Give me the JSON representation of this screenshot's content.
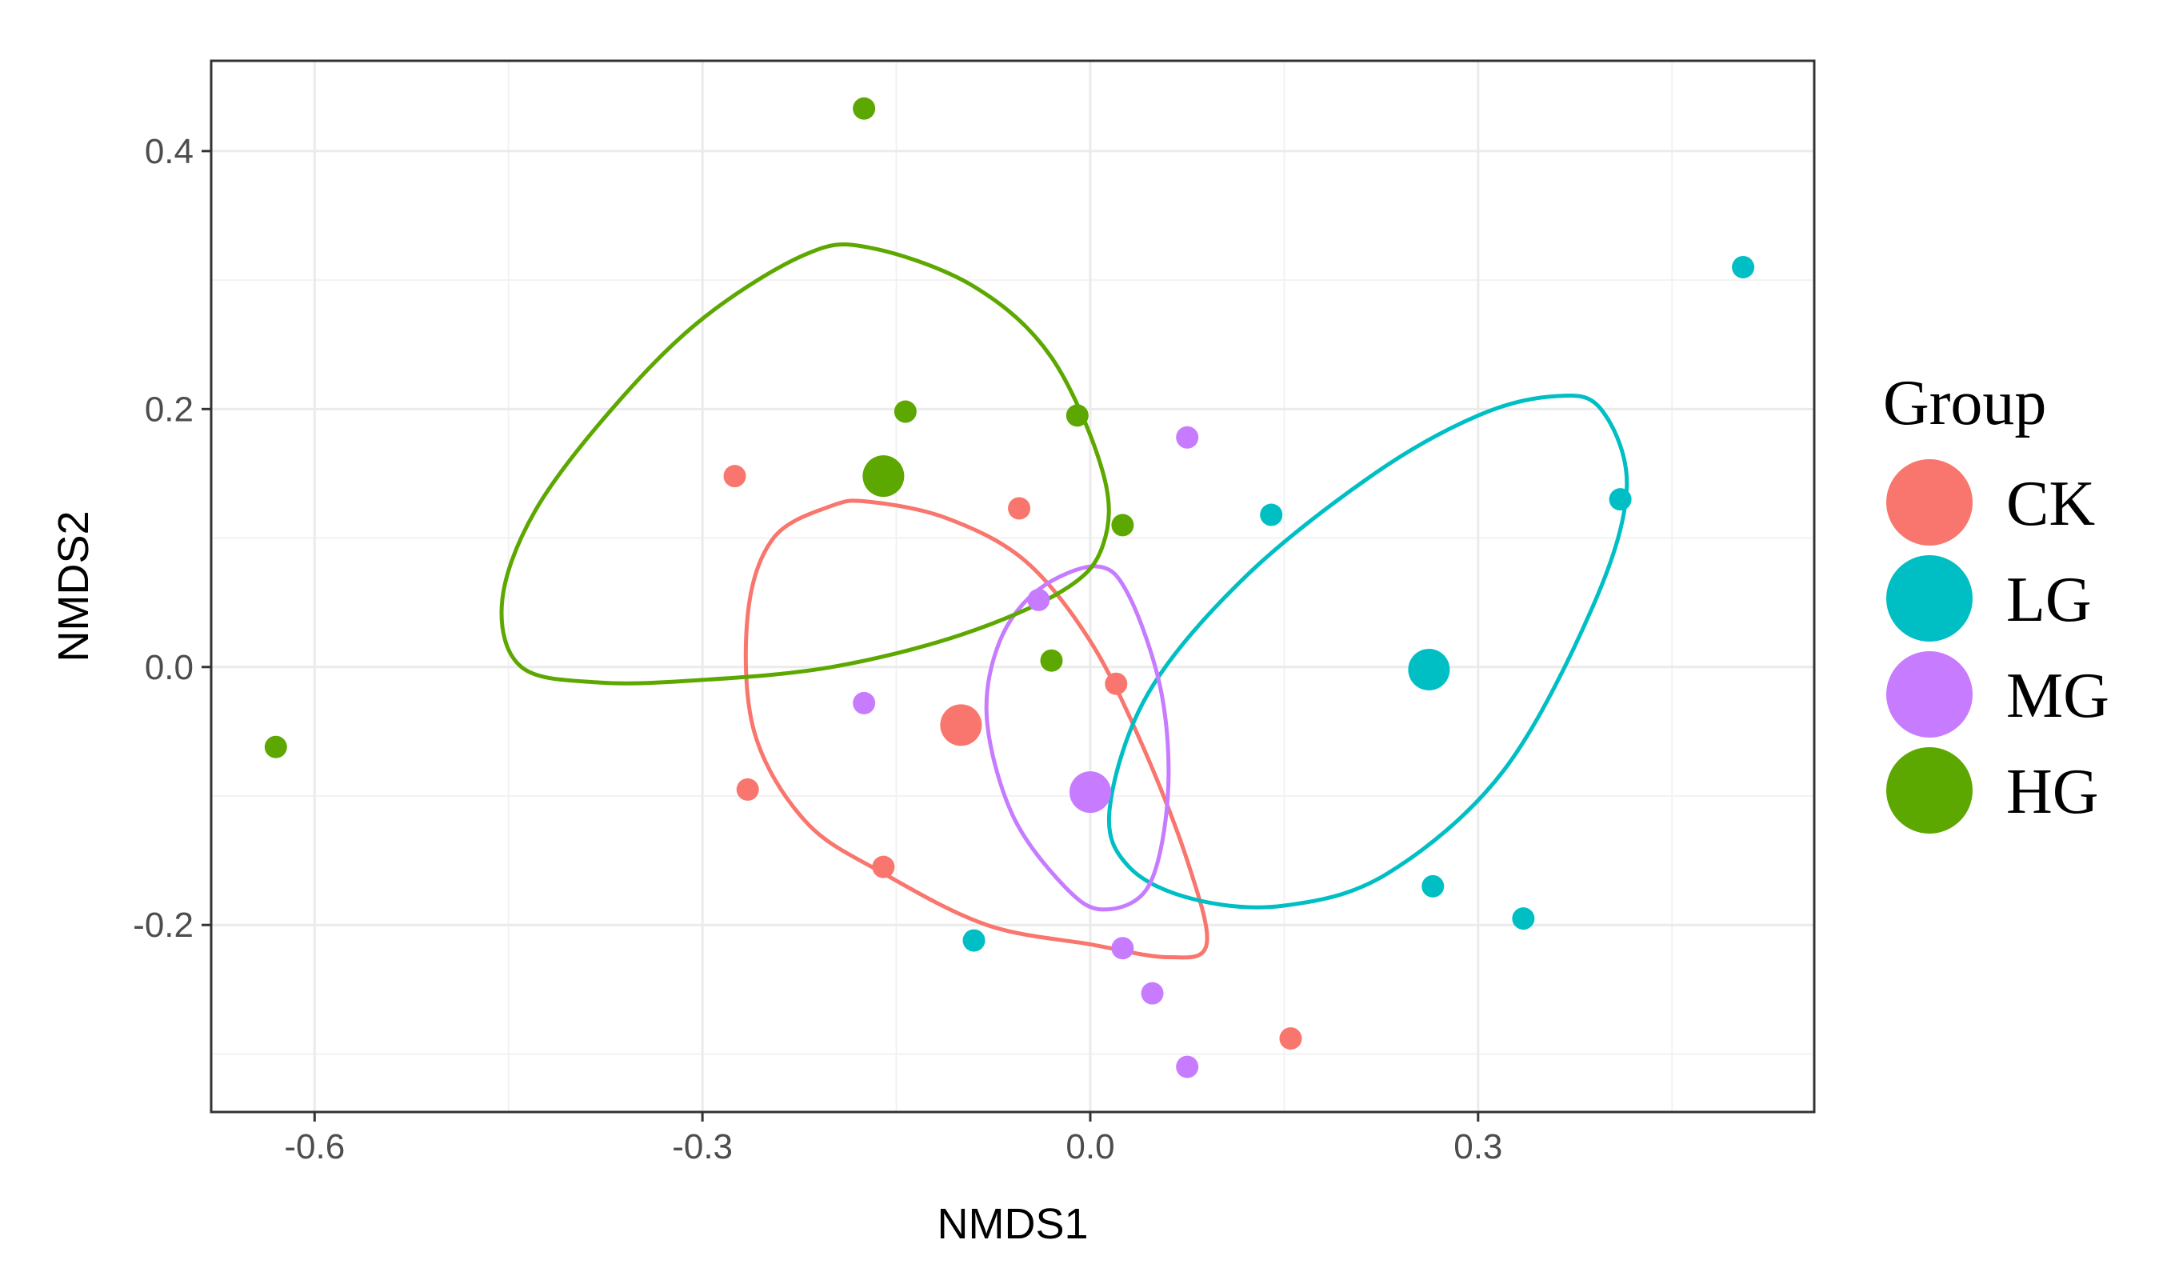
{
  "chart_data": {
    "type": "scatter",
    "title": "",
    "xlabel": "NMDS1",
    "ylabel": "NMDS2",
    "xlim": [
      -0.68,
      0.56
    ],
    "ylim": [
      -0.345,
      0.47
    ],
    "xticks": [
      -0.6,
      -0.3,
      0.0,
      0.3
    ],
    "xtick_labels": [
      "-0.6",
      "-0.3",
      "0.0",
      "0.3"
    ],
    "yticks": [
      -0.2,
      0.0,
      0.2,
      0.4
    ],
    "ytick_labels": [
      "-0.2",
      "0.0",
      "0.2",
      "0.4"
    ],
    "grid": true,
    "legend": {
      "title": "Group",
      "position": "right"
    },
    "series": [
      {
        "name": "CK",
        "color": "#F8766D",
        "points": [
          {
            "x": -0.275,
            "y": 0.148
          },
          {
            "x": -0.055,
            "y": 0.123
          },
          {
            "x": 0.02,
            "y": -0.013
          },
          {
            "x": -0.265,
            "y": -0.095
          },
          {
            "x": -0.16,
            "y": -0.155
          },
          {
            "x": 0.155,
            "y": -0.288
          }
        ],
        "centroid": {
          "x": -0.1,
          "y": -0.045
        },
        "ellipse": [
          {
            "x": -0.17,
            "y": 0.128
          },
          {
            "x": -0.11,
            "y": 0.115
          },
          {
            "x": -0.05,
            "y": 0.082
          },
          {
            "x": 0.0,
            "y": 0.02
          },
          {
            "x": 0.04,
            "y": -0.06
          },
          {
            "x": 0.075,
            "y": -0.15
          },
          {
            "x": 0.09,
            "y": -0.215
          },
          {
            "x": 0.06,
            "y": -0.225
          },
          {
            "x": 0.0,
            "y": -0.215
          },
          {
            "x": -0.08,
            "y": -0.2
          },
          {
            "x": -0.16,
            "y": -0.16
          },
          {
            "x": -0.22,
            "y": -0.12
          },
          {
            "x": -0.26,
            "y": -0.05
          },
          {
            "x": -0.265,
            "y": 0.04
          },
          {
            "x": -0.245,
            "y": 0.1
          },
          {
            "x": -0.2,
            "y": 0.125
          }
        ]
      },
      {
        "name": "LG",
        "color": "#00BFC4",
        "points": [
          {
            "x": 0.505,
            "y": 0.31
          },
          {
            "x": 0.41,
            "y": 0.13
          },
          {
            "x": 0.14,
            "y": 0.118
          },
          {
            "x": 0.265,
            "y": -0.17
          },
          {
            "x": 0.335,
            "y": -0.195
          },
          {
            "x": -0.09,
            "y": -0.212
          }
        ],
        "centroid": {
          "x": 0.262,
          "y": -0.002
        },
        "ellipse": [
          {
            "x": 0.36,
            "y": 0.21
          },
          {
            "x": 0.395,
            "y": 0.2
          },
          {
            "x": 0.415,
            "y": 0.14
          },
          {
            "x": 0.39,
            "y": 0.05
          },
          {
            "x": 0.32,
            "y": -0.08
          },
          {
            "x": 0.23,
            "y": -0.16
          },
          {
            "x": 0.15,
            "y": -0.185
          },
          {
            "x": 0.08,
            "y": -0.18
          },
          {
            "x": 0.03,
            "y": -0.155
          },
          {
            "x": 0.015,
            "y": -0.11
          },
          {
            "x": 0.045,
            "y": -0.02
          },
          {
            "x": 0.12,
            "y": 0.07
          },
          {
            "x": 0.22,
            "y": 0.15
          },
          {
            "x": 0.3,
            "y": 0.195
          }
        ]
      },
      {
        "name": "MG",
        "color": "#C77CFF",
        "points": [
          {
            "x": 0.075,
            "y": 0.178
          },
          {
            "x": -0.04,
            "y": 0.052
          },
          {
            "x": -0.175,
            "y": -0.028
          },
          {
            "x": 0.025,
            "y": -0.218
          },
          {
            "x": 0.048,
            "y": -0.253
          },
          {
            "x": 0.075,
            "y": -0.31
          }
        ],
        "centroid": {
          "x": 0.0,
          "y": -0.097
        },
        "ellipse": [
          {
            "x": 0.005,
            "y": 0.078
          },
          {
            "x": 0.03,
            "y": 0.055
          },
          {
            "x": 0.055,
            "y": -0.02
          },
          {
            "x": 0.06,
            "y": -0.1
          },
          {
            "x": 0.045,
            "y": -0.17
          },
          {
            "x": 0.01,
            "y": -0.188
          },
          {
            "x": -0.02,
            "y": -0.17
          },
          {
            "x": -0.06,
            "y": -0.115
          },
          {
            "x": -0.08,
            "y": -0.04
          },
          {
            "x": -0.07,
            "y": 0.02
          },
          {
            "x": -0.04,
            "y": 0.06
          }
        ]
      },
      {
        "name": "HG",
        "color": "#5DA800",
        "points": [
          {
            "x": -0.175,
            "y": 0.433
          },
          {
            "x": -0.143,
            "y": 0.198
          },
          {
            "x": -0.01,
            "y": 0.195
          },
          {
            "x": 0.025,
            "y": 0.11
          },
          {
            "x": -0.03,
            "y": 0.005
          },
          {
            "x": -0.63,
            "y": -0.062
          }
        ],
        "centroid": {
          "x": -0.16,
          "y": 0.148
        },
        "ellipse": [
          {
            "x": -0.17,
            "y": 0.325
          },
          {
            "x": -0.09,
            "y": 0.295
          },
          {
            "x": -0.03,
            "y": 0.24
          },
          {
            "x": 0.01,
            "y": 0.15
          },
          {
            "x": 0.01,
            "y": 0.095
          },
          {
            "x": -0.02,
            "y": 0.06
          },
          {
            "x": -0.1,
            "y": 0.025
          },
          {
            "x": -0.2,
            "y": 0.0
          },
          {
            "x": -0.3,
            "y": -0.01
          },
          {
            "x": -0.38,
            "y": -0.012
          },
          {
            "x": -0.44,
            "y": 0.0
          },
          {
            "x": -0.455,
            "y": 0.05
          },
          {
            "x": -0.43,
            "y": 0.12
          },
          {
            "x": -0.37,
            "y": 0.2
          },
          {
            "x": -0.3,
            "y": 0.27
          },
          {
            "x": -0.22,
            "y": 0.32
          }
        ]
      }
    ]
  }
}
